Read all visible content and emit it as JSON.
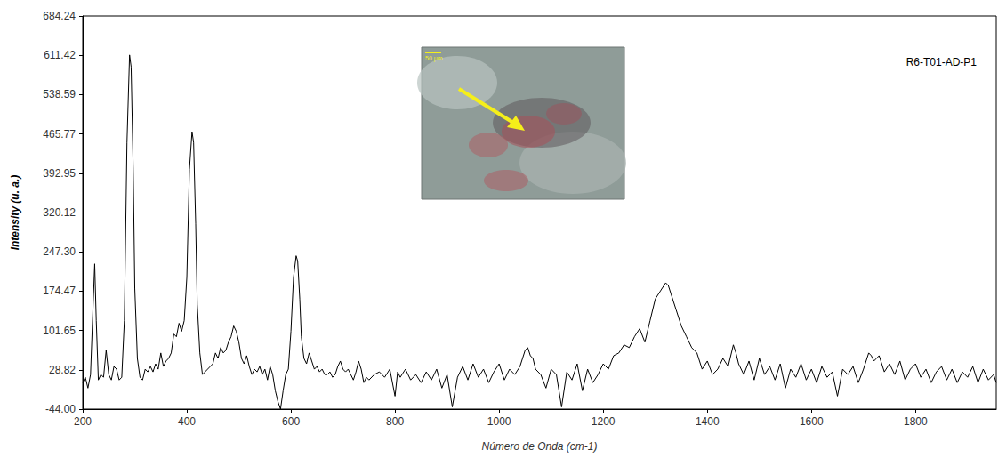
{
  "chart_data": {
    "type": "line",
    "x_label": "Número de Onda (cm-1)",
    "y_label": "Intensity (u. a.)",
    "annotations": {
      "sample": "R6-T01-AD-P1",
      "inset_scale": "50 µm"
    },
    "color": "#000000",
    "marker": "none",
    "line_style": "solid",
    "grid": false,
    "xlim": [
      200,
      1955
    ],
    "xticks": [
      200,
      400,
      600,
      800,
      1000,
      1200,
      1400,
      1600,
      1800
    ],
    "ylim": [
      -44,
      684.24
    ],
    "yticks": [
      {
        "value": -44,
        "label": "-44.00"
      },
      28.82,
      101.65,
      174.47,
      {
        "value": 247.3,
        "label": "247.30"
      },
      320.12,
      392.95,
      465.77,
      538.59,
      611.42,
      684.24
    ],
    "x": [
      200,
      205,
      210,
      215,
      220,
      223,
      226,
      230,
      235,
      240,
      245,
      250,
      255,
      260,
      265,
      270,
      275,
      280,
      285,
      290,
      293,
      297,
      300,
      305,
      310,
      315,
      320,
      325,
      330,
      335,
      340,
      345,
      350,
      355,
      360,
      365,
      370,
      375,
      380,
      385,
      390,
      395,
      400,
      405,
      410,
      413,
      417,
      420,
      425,
      430,
      435,
      440,
      445,
      450,
      455,
      460,
      465,
      470,
      475,
      480,
      485,
      490,
      495,
      500,
      505,
      510,
      515,
      520,
      525,
      530,
      535,
      540,
      545,
      550,
      555,
      560,
      565,
      570,
      575,
      580,
      585,
      590,
      595,
      600,
      605,
      610,
      613,
      617,
      620,
      625,
      630,
      635,
      640,
      645,
      650,
      655,
      660,
      665,
      670,
      675,
      680,
      685,
      690,
      695,
      700,
      705,
      710,
      715,
      720,
      725,
      730,
      735,
      740,
      745,
      750,
      760,
      770,
      780,
      790,
      800,
      805,
      810,
      820,
      830,
      840,
      850,
      860,
      870,
      880,
      890,
      900,
      910,
      920,
      930,
      940,
      950,
      960,
      970,
      980,
      990,
      1000,
      1010,
      1020,
      1030,
      1040,
      1050,
      1055,
      1060,
      1065,
      1070,
      1080,
      1090,
      1100,
      1110,
      1120,
      1130,
      1140,
      1150,
      1160,
      1170,
      1180,
      1190,
      1200,
      1210,
      1220,
      1230,
      1240,
      1250,
      1260,
      1270,
      1280,
      1290,
      1300,
      1310,
      1320,
      1325,
      1330,
      1340,
      1350,
      1360,
      1370,
      1380,
      1390,
      1400,
      1410,
      1420,
      1430,
      1440,
      1450,
      1455,
      1460,
      1470,
      1480,
      1490,
      1500,
      1510,
      1520,
      1530,
      1540,
      1550,
      1560,
      1570,
      1580,
      1590,
      1600,
      1610,
      1620,
      1630,
      1640,
      1650,
      1660,
      1670,
      1680,
      1690,
      1700,
      1710,
      1715,
      1720,
      1730,
      1740,
      1750,
      1760,
      1770,
      1780,
      1790,
      1800,
      1810,
      1820,
      1830,
      1840,
      1850,
      1860,
      1870,
      1880,
      1890,
      1900,
      1910,
      1920,
      1930,
      1940,
      1950,
      1955
    ],
    "values": [
      5,
      15,
      -5,
      20,
      150,
      225,
      120,
      10,
      20,
      15,
      65,
      20,
      10,
      35,
      30,
      10,
      15,
      120,
      450,
      612,
      590,
      400,
      180,
      50,
      15,
      10,
      30,
      25,
      35,
      25,
      40,
      30,
      60,
      35,
      45,
      50,
      60,
      95,
      90,
      115,
      100,
      120,
      200,
      400,
      470,
      450,
      300,
      150,
      60,
      20,
      25,
      30,
      35,
      40,
      60,
      50,
      70,
      60,
      65,
      80,
      90,
      110,
      100,
      80,
      50,
      40,
      55,
      35,
      20,
      30,
      25,
      35,
      20,
      30,
      10,
      35,
      20,
      -10,
      -30,
      -44,
      -10,
      20,
      30,
      100,
      200,
      240,
      230,
      160,
      90,
      50,
      40,
      60,
      45,
      30,
      35,
      25,
      30,
      20,
      20,
      25,
      15,
      20,
      35,
      45,
      30,
      25,
      30,
      20,
      10,
      25,
      45,
      30,
      5,
      15,
      10,
      20,
      25,
      15,
      30,
      -20,
      25,
      15,
      30,
      10,
      20,
      5,
      25,
      10,
      30,
      -5,
      20,
      -40,
      15,
      35,
      10,
      40,
      15,
      30,
      5,
      25,
      40,
      10,
      30,
      20,
      35,
      65,
      70,
      55,
      50,
      30,
      20,
      -5,
      30,
      20,
      -40,
      25,
      10,
      40,
      -10,
      30,
      5,
      20,
      40,
      30,
      55,
      60,
      75,
      70,
      90,
      105,
      80,
      120,
      160,
      175,
      190,
      185,
      170,
      140,
      110,
      90,
      70,
      60,
      30,
      45,
      20,
      30,
      50,
      35,
      75,
      60,
      40,
      20,
      45,
      10,
      50,
      20,
      35,
      10,
      40,
      -5,
      30,
      15,
      40,
      10,
      30,
      5,
      35,
      15,
      25,
      -20,
      30,
      20,
      35,
      5,
      30,
      60,
      55,
      45,
      55,
      25,
      40,
      20,
      45,
      10,
      30,
      40,
      15,
      30,
      5,
      25,
      35,
      10,
      30,
      5,
      25,
      15,
      35,
      5,
      30,
      10,
      20,
      5
    ]
  }
}
